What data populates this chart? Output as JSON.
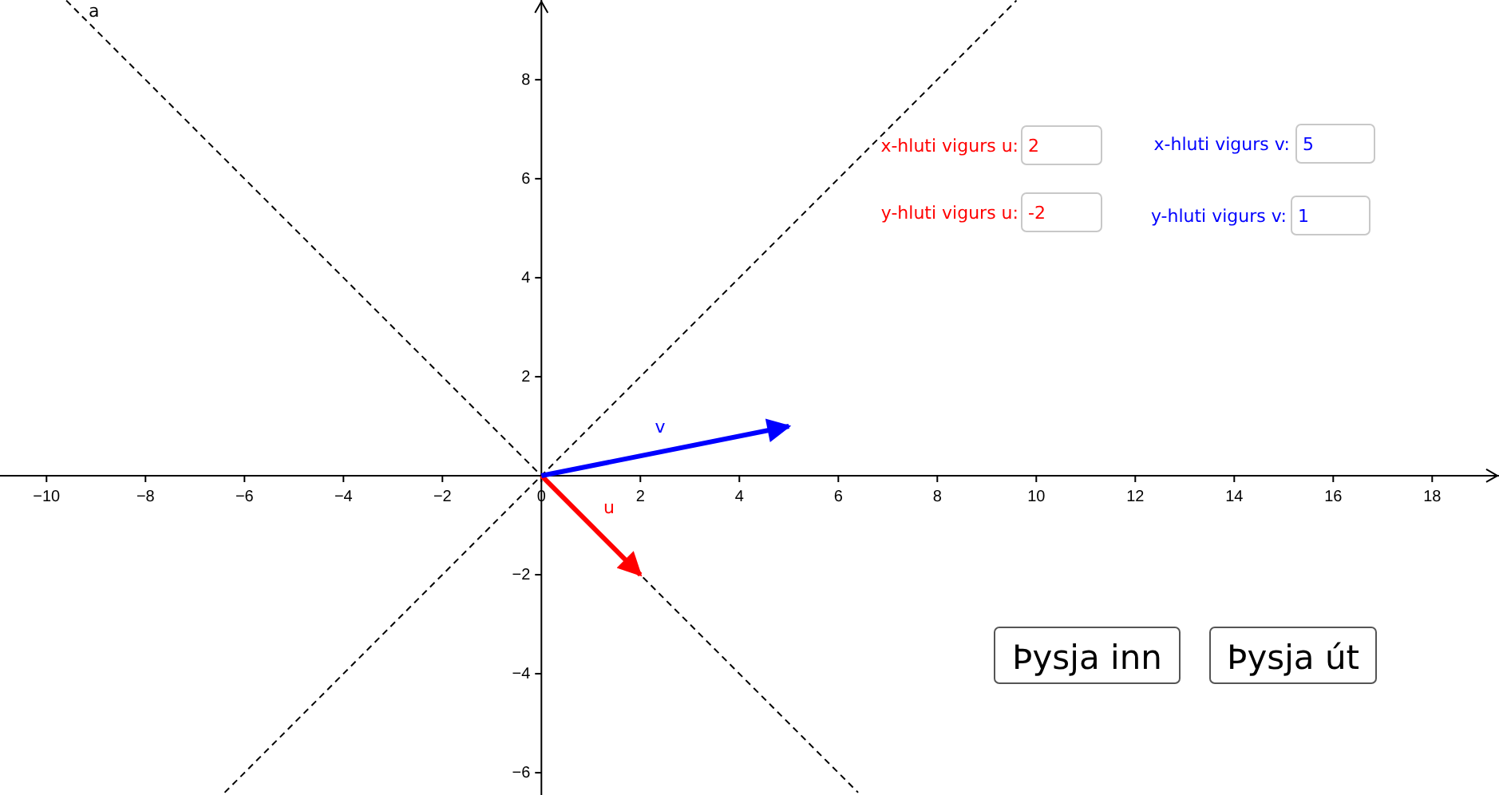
{
  "chart_data": {
    "type": "line",
    "xlim": [
      -10.94,
      19.35
    ],
    "ylim": [
      -6.45,
      9.61
    ],
    "xticks": [
      {
        "value": -10,
        "label": "−10"
      },
      {
        "value": -8,
        "label": "−8"
      },
      {
        "value": -6,
        "label": "−6"
      },
      {
        "value": -4,
        "label": "−4"
      },
      {
        "value": -2,
        "label": "−2"
      },
      0,
      2,
      4,
      6,
      8,
      10,
      12,
      14,
      16,
      18
    ],
    "yticks": [
      {
        "value": -6,
        "label": "−6"
      },
      {
        "value": -4,
        "label": "−4"
      },
      {
        "value": -2,
        "label": "−2"
      },
      2,
      4,
      6,
      8
    ],
    "grid": false,
    "series": [
      {
        "name": "a",
        "color": "#000000",
        "line_style": "dashed",
        "x": [
          -9.6,
          6.4
        ],
        "values": [
          9.6,
          -6.4
        ]
      },
      {
        "color": "#000000",
        "line_style": "dashed",
        "x": [
          -6.4,
          9.6
        ],
        "values": [
          -6.4,
          9.6
        ]
      },
      {
        "name": "u",
        "color": "#ff0000",
        "line_style": "solid",
        "x": [
          0,
          2
        ],
        "values": [
          0,
          -2
        ]
      },
      {
        "name": "v",
        "color": "#0000ff",
        "line_style": "solid",
        "x": [
          0,
          5
        ],
        "values": [
          0,
          1
        ]
      }
    ],
    "annotations": [
      "x-hluti vigurs u:",
      "2",
      "y-hluti vigurs u:",
      "-2",
      "x-hluti vigurs v:",
      "5",
      "y-hluti vigurs v:",
      "1",
      "Þysja inn",
      "Þysja út"
    ]
  }
}
